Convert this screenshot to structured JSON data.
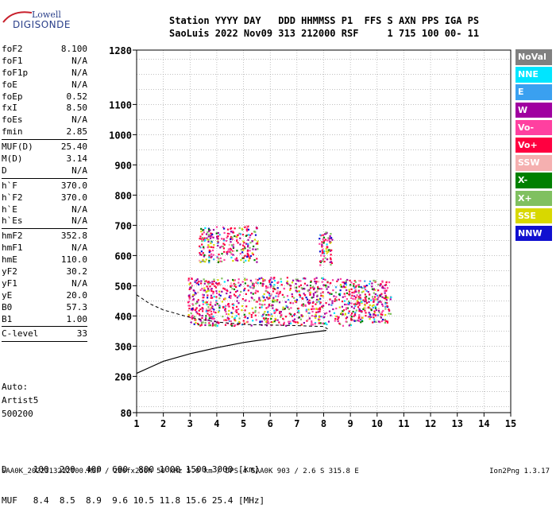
{
  "header": {
    "line1": "Station YYYY DAY   DDD HHMMSS P1  FFS S AXN PPS IGA PS",
    "line2": "SaoLuis 2022 Nov09 313 212000 RSF     1 715 100 00- 11"
  },
  "logo": {
    "brand": "Lowell",
    "product": "DIGISONDE"
  },
  "params": [
    [
      {
        "k": "foF2",
        "v": "8.100"
      },
      {
        "k": "foF1",
        "v": "N/A"
      },
      {
        "k": "foF1p",
        "v": "N/A"
      },
      {
        "k": "foE",
        "v": "N/A"
      },
      {
        "k": "foEp",
        "v": "0.52"
      },
      {
        "k": "fxI",
        "v": "8.50"
      },
      {
        "k": "foEs",
        "v": "N/A"
      },
      {
        "k": "fmin",
        "v": "2.85"
      }
    ],
    [
      {
        "k": "MUF(D)",
        "v": "25.40"
      },
      {
        "k": "M(D)",
        "v": "3.14"
      },
      {
        "k": "D",
        "v": "N/A"
      }
    ],
    [
      {
        "k": "h`F",
        "v": "370.0"
      },
      {
        "k": "h`F2",
        "v": "370.0"
      },
      {
        "k": "h`E",
        "v": "N/A"
      },
      {
        "k": "h`Es",
        "v": "N/A"
      }
    ],
    [
      {
        "k": "hmF2",
        "v": "352.8"
      },
      {
        "k": "hmF1",
        "v": "N/A"
      },
      {
        "k": "hmE",
        "v": "110.0"
      },
      {
        "k": "yF2",
        "v": "30.2"
      },
      {
        "k": "yF1",
        "v": "N/A"
      },
      {
        "k": "yE",
        "v": "20.0"
      },
      {
        "k": "B0",
        "v": "57.3"
      },
      {
        "k": "B1",
        "v": "1.00"
      }
    ],
    [
      {
        "k": "C-level",
        "v": "33"
      }
    ]
  ],
  "auto": {
    "line1": "Auto:",
    "line2": "Artist5",
    "line3": "500200"
  },
  "legend": [
    {
      "label": "NoVal",
      "color": "#808080"
    },
    {
      "label": "NNE",
      "color": "#00e5ff"
    },
    {
      "label": "E",
      "color": "#3aa0f0"
    },
    {
      "label": "W",
      "color": "#a000a0"
    },
    {
      "label": "Vo-",
      "color": "#ff40a0"
    },
    {
      "label": "Vo+",
      "color": "#ff0040"
    },
    {
      "label": "SSW",
      "color": "#f5b0b0"
    },
    {
      "label": "X-",
      "color": "#008000"
    },
    {
      "label": "X+",
      "color": "#80c060"
    },
    {
      "label": "SSE",
      "color": "#d8d800"
    },
    {
      "label": "NNW",
      "color": "#1010d0"
    }
  ],
  "bottom": {
    "d_line": "D     100  200  400  600  800 1000 1500 3000 [km]",
    "muf_line": "MUF   8.4  8.5  8.9  9.6 10.5 11.8 15.6 25.4 [MHz]"
  },
  "footer": {
    "left": "SAA0K_2022313212000.RSF / 280fx256h 50 kHz 5.0 km / DPS-4 SAA0K 903 / 2.6 S 315.8 E",
    "right": "Ion2Png 1.3.17"
  },
  "chart_data": {
    "type": "scatter",
    "xlim": [
      1,
      15
    ],
    "ylim": [
      80,
      1280
    ],
    "x_ticks": [
      1,
      2,
      3,
      4,
      5,
      6,
      7,
      8,
      9,
      10,
      11,
      12,
      13,
      14,
      15
    ],
    "y_ticks": [
      80,
      200,
      300,
      400,
      500,
      600,
      700,
      800,
      900,
      1000,
      1100,
      1280
    ],
    "grid": true,
    "clusters": [
      {
        "x_range": [
          2.9,
          9.0
        ],
        "y_range": [
          370,
          530
        ],
        "density": "high"
      },
      {
        "x_range": [
          3.3,
          5.5
        ],
        "y_range": [
          580,
          700
        ],
        "density": "medium"
      },
      {
        "x_range": [
          9.0,
          10.5
        ],
        "y_range": [
          380,
          520
        ],
        "density": "medium"
      },
      {
        "x_range": [
          7.8,
          8.3
        ],
        "y_range": [
          570,
          680
        ],
        "density": "low"
      }
    ],
    "trace_solid": [
      [
        1.0,
        210
      ],
      [
        1.5,
        230
      ],
      [
        2.0,
        250
      ],
      [
        3.0,
        275
      ],
      [
        4.0,
        295
      ],
      [
        5.0,
        312
      ],
      [
        6.0,
        325
      ],
      [
        7.0,
        340
      ],
      [
        8.1,
        352
      ]
    ],
    "trace_dashed": [
      [
        1.0,
        470
      ],
      [
        1.5,
        440
      ],
      [
        2.0,
        420
      ],
      [
        3.0,
        395
      ],
      [
        4.0,
        380
      ],
      [
        5.0,
        372
      ],
      [
        6.0,
        370
      ],
      [
        7.0,
        368
      ],
      [
        8.0,
        365
      ],
      [
        8.15,
        357
      ]
    ]
  }
}
